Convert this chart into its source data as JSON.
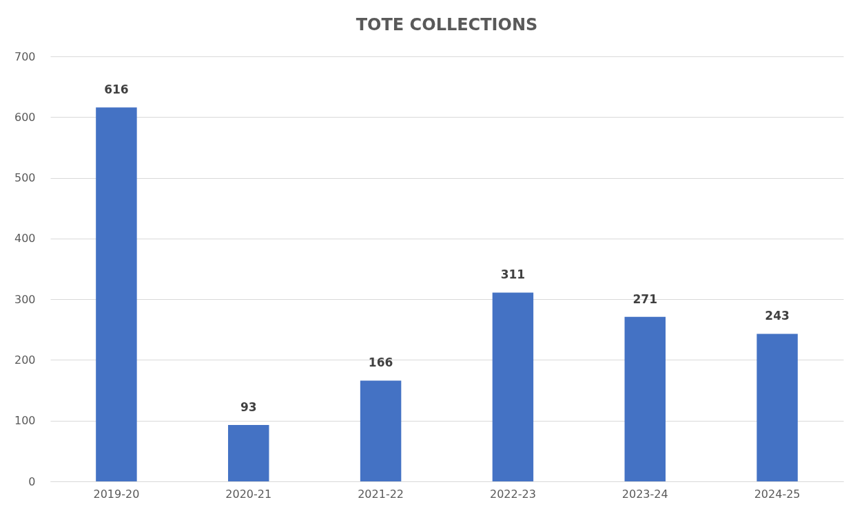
{
  "chart_data": {
    "type": "bar",
    "title": "TOTE COLLECTIONS",
    "categories": [
      "2019-20",
      "2020-21",
      "2021-22",
      "2022-23",
      "2023-24",
      "2024-25"
    ],
    "values": [
      616,
      93,
      166,
      311,
      271,
      243
    ],
    "color": "#4472c4",
    "ylim": [
      0,
      700
    ],
    "yticks": [
      0,
      100,
      200,
      300,
      400,
      500,
      600,
      700
    ],
    "grid": "y",
    "data_labels": true
  }
}
